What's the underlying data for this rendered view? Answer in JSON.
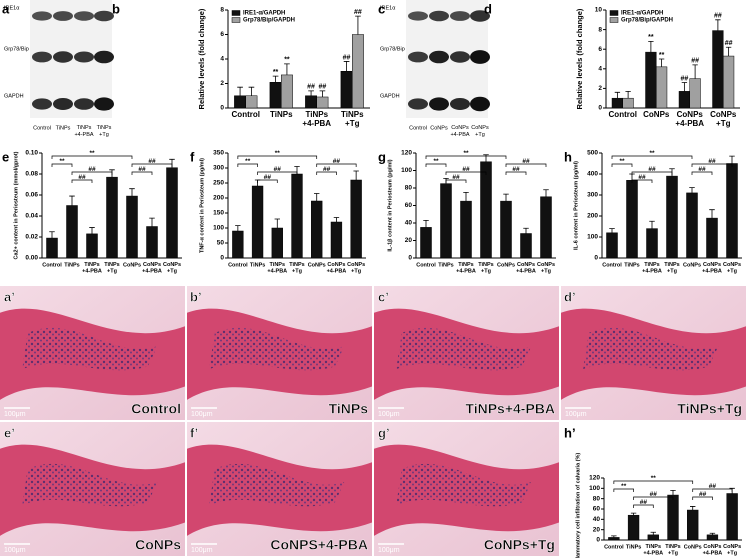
{
  "panel_labels": [
    "a",
    "b",
    "c",
    "d",
    "e",
    "f",
    "g",
    "h",
    "a’",
    "b’",
    "c’",
    "d’",
    "e’",
    "f’",
    "g’",
    "h’"
  ],
  "blots": [
    {
      "rows": [
        "IRE1α",
        "Grp78/Bip",
        "GAPDH"
      ],
      "lanes": [
        "Control",
        "TiNPs",
        "TiNPs +4-PBA",
        "TiNPs +Tg"
      ]
    },
    {
      "rows": [
        "IRE1α",
        "Grp78/Bip",
        "GAPDH"
      ],
      "lanes": [
        "Control",
        "CoNPs",
        "CoNPs +4-PBA",
        "CoNPs +Tg"
      ]
    }
  ],
  "micrographs": [
    {
      "caption": "Control",
      "scale": "100μm"
    },
    {
      "caption": "TiNPs",
      "scale": "100μm"
    },
    {
      "caption": "TiNPs+4-PBA",
      "scale": "100μm"
    },
    {
      "caption": "TiNPs+Tg",
      "scale": "100μm"
    },
    {
      "caption": "CoNPs",
      "scale": "100μm"
    },
    {
      "caption": "CoNPS+4-PBA",
      "scale": "100μm"
    },
    {
      "caption": "CoNPs+Tg",
      "scale": "100μm"
    }
  ],
  "chart_data": [
    {
      "type": "bar",
      "ylabel": "Relative levels (fold change)",
      "categories": [
        "Control",
        "TiNPs",
        "TiNPs +4-PBA",
        "TiNPs +Tg"
      ],
      "ylim": [
        0,
        8
      ],
      "yticks": [
        0,
        2,
        4,
        6,
        8
      ],
      "series": [
        {
          "name": "IRE1-α/GAPDH",
          "color": "#111111",
          "values": [
            1,
            2.1,
            1,
            3
          ],
          "errors": [
            0.7,
            0.5,
            0.4,
            0.8
          ],
          "annotations": [
            null,
            "**",
            "##",
            "##"
          ]
        },
        {
          "name": "Grp78/Bip/GAPDH",
          "color": "#a0a0a0",
          "values": [
            1,
            2.7,
            0.9,
            6
          ],
          "errors": [
            0.7,
            0.9,
            0.5,
            1.5
          ],
          "annotations": [
            null,
            "**",
            "##",
            "##"
          ]
        }
      ]
    },
    {
      "type": "bar",
      "ylabel": "Relative levels (fold change)",
      "categories": [
        "Control",
        "CoNPs",
        "CoNPs +4-PBA",
        "CoNPs +Tg"
      ],
      "ylim": [
        0,
        10
      ],
      "yticks": [
        0,
        2,
        4,
        6,
        8,
        10
      ],
      "series": [
        {
          "name": "IRE1-α/GAPDH",
          "color": "#111111",
          "values": [
            1,
            5.7,
            1.7,
            7.9
          ],
          "errors": [
            0.6,
            1.1,
            0.9,
            1.1
          ],
          "annotations": [
            null,
            "**",
            "##",
            "##"
          ]
        },
        {
          "name": "Grp78/Bip/GAPDH",
          "color": "#a0a0a0",
          "values": [
            1,
            4.2,
            3,
            5.3
          ],
          "errors": [
            0.7,
            0.8,
            1.4,
            0.9
          ],
          "annotations": [
            null,
            "**",
            "##",
            "##"
          ]
        }
      ]
    },
    {
      "type": "bar",
      "ylabel": "Ca2+ content in Periosteum (mmol/gprot)",
      "categories": [
        "Control",
        "TiNPs",
        "TiNPs +4-PBA",
        "TiNPs +Tg",
        "CoNPs",
        "CoNPs +4-PBA",
        "CoNPs +Tg"
      ],
      "ylim": [
        0,
        0.1
      ],
      "yticks": [
        {
          "value": 0,
          "label": "0.00"
        },
        {
          "value": 0.02,
          "label": "0.02"
        },
        {
          "value": 0.04,
          "label": "0.04"
        },
        {
          "value": 0.06,
          "label": "0.06"
        },
        {
          "value": 0.08,
          "label": "0.08"
        },
        {
          "value": 0.1,
          "label": "0.10"
        }
      ],
      "series": [
        {
          "color": "#111111",
          "values": [
            0.019,
            0.05,
            0.023,
            0.077,
            0.059,
            0.03,
            0.086
          ],
          "errors": [
            0.006,
            0.009,
            0.006,
            0.007,
            0.007,
            0.008,
            0.008
          ]
        }
      ],
      "brackets": [
        {
          "from": 0,
          "to": 4,
          "label": "**"
        },
        {
          "from": 4,
          "to": 6,
          "label": "##"
        },
        {
          "from": 0,
          "to": 1,
          "label": "**"
        },
        {
          "from": 1,
          "to": 3,
          "label": "##"
        },
        {
          "from": 4,
          "to": 5,
          "label": "##"
        },
        {
          "from": 1,
          "to": 2,
          "label": "##"
        }
      ]
    },
    {
      "type": "bar",
      "ylabel": "TNF-α content in Periosteum (pg/ml)",
      "categories": [
        "Control",
        "TiNPs",
        "TiNPs +4-PBA",
        "TiNPs +Tg",
        "CoNPs",
        "CoNPs +4-PBA",
        "CoNPs +Tg"
      ],
      "ylim": [
        0,
        350
      ],
      "yticks": [
        0,
        50,
        100,
        150,
        200,
        250,
        300,
        350
      ],
      "series": [
        {
          "color": "#111111",
          "values": [
            90,
            240,
            100,
            280,
            190,
            120,
            260
          ],
          "errors": [
            18,
            20,
            30,
            25,
            25,
            15,
            30
          ]
        }
      ],
      "brackets": [
        {
          "from": 0,
          "to": 4,
          "label": "**"
        },
        {
          "from": 4,
          "to": 6,
          "label": "##"
        },
        {
          "from": 0,
          "to": 1,
          "label": "**"
        },
        {
          "from": 1,
          "to": 3,
          "label": "##"
        },
        {
          "from": 4,
          "to": 5,
          "label": "##"
        },
        {
          "from": 1,
          "to": 2,
          "label": "##"
        }
      ]
    },
    {
      "type": "bar",
      "ylabel": "IL-1β content in Periosteum (pg/ml)",
      "categories": [
        "Control",
        "TiNPs",
        "TiNPs +4-PBA",
        "TiNPs +Tg",
        "CoNPs",
        "CoNPs +4-PBA",
        "CoNPs +Tg"
      ],
      "ylim": [
        0,
        120
      ],
      "yticks": [
        0,
        20,
        40,
        60,
        80,
        100,
        120
      ],
      "series": [
        {
          "color": "#111111",
          "values": [
            35,
            85,
            65,
            110,
            65,
            28,
            70
          ],
          "errors": [
            8,
            6,
            10,
            8,
            8,
            6,
            8
          ]
        }
      ],
      "brackets": [
        {
          "from": 0,
          "to": 4,
          "label": "**"
        },
        {
          "from": 4,
          "to": 6,
          "label": "##"
        },
        {
          "from": 0,
          "to": 1,
          "label": "**"
        },
        {
          "from": 1,
          "to": 3,
          "label": "##"
        },
        {
          "from": 4,
          "to": 5,
          "label": "##"
        },
        {
          "from": 1,
          "to": 2,
          "label": "##"
        }
      ]
    },
    {
      "type": "bar",
      "ylabel": "IL-6 content in Periosteum (pg/ml)",
      "categories": [
        "Control",
        "TiNPs",
        "TiNPs +4-PBA",
        "TiNPs +Tg",
        "CoNPs",
        "CoNPs +4-PBA",
        "CoNPs +Tg"
      ],
      "ylim": [
        0,
        500
      ],
      "yticks": [
        0,
        100,
        200,
        300,
        400,
        500
      ],
      "series": [
        {
          "color": "#111111",
          "values": [
            120,
            370,
            140,
            390,
            310,
            190,
            450
          ],
          "errors": [
            20,
            30,
            35,
            35,
            25,
            40,
            35
          ]
        }
      ],
      "brackets": [
        {
          "from": 0,
          "to": 4,
          "label": "**"
        },
        {
          "from": 4,
          "to": 6,
          "label": "##"
        },
        {
          "from": 0,
          "to": 1,
          "label": "**"
        },
        {
          "from": 1,
          "to": 3,
          "label": "##"
        },
        {
          "from": 4,
          "to": 5,
          "label": "##"
        },
        {
          "from": 1,
          "to": 2,
          "label": "##"
        }
      ]
    },
    {
      "type": "bar",
      "ylabel": "Inflammatory cell infiltration of calvaria (%)",
      "categories": [
        "Control",
        "TiNPs",
        "TiNPs +4-PBA",
        "TiNPs +Tg",
        "CoNPs",
        "CoNPs +4-PBA",
        "CoNPs +Tg"
      ],
      "ylim": [
        0,
        120
      ],
      "yticks": [
        0,
        20,
        40,
        60,
        80,
        100,
        120
      ],
      "series": [
        {
          "color": "#111111",
          "values": [
            5,
            48,
            10,
            87,
            58,
            10,
            90
          ],
          "errors": [
            3,
            4,
            5,
            9,
            7,
            3,
            10
          ]
        }
      ],
      "brackets": [
        {
          "from": 0,
          "to": 4,
          "label": "**"
        },
        {
          "from": 4,
          "to": 6,
          "label": "##"
        },
        {
          "from": 0,
          "to": 1,
          "label": "**"
        },
        {
          "from": 1,
          "to": 3,
          "label": "##"
        },
        {
          "from": 4,
          "to": 5,
          "label": "##"
        },
        {
          "from": 1,
          "to": 2,
          "label": "##"
        }
      ]
    }
  ]
}
